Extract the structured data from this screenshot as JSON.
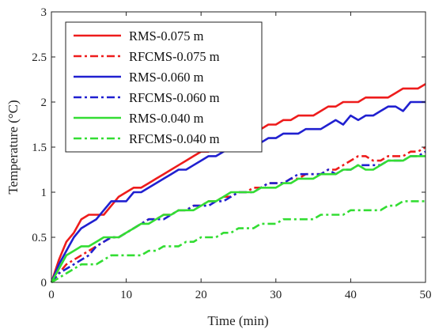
{
  "chart_data": {
    "type": "line",
    "xlabel": "Time (min)",
    "ylabel": "Temperature (°C)",
    "xlim": [
      0,
      50
    ],
    "ylim": [
      0,
      3
    ],
    "xticks": [
      0,
      10,
      20,
      30,
      40,
      50
    ],
    "xtick_labels": [
      "0",
      "10",
      "20",
      "30",
      "40",
      "50"
    ],
    "yticks": [
      0,
      0.5,
      1,
      1.5,
      2,
      2.5,
      3
    ],
    "ytick_labels": [
      "0",
      "0.5",
      "1",
      "1.5",
      "2",
      "2.5",
      "3"
    ],
    "grid": false,
    "legend_position": "top-left",
    "series": [
      {
        "name": "RMS-0.075 m",
        "color": "#ee1c1c",
        "dash": "solid",
        "x": [
          0,
          1,
          2,
          3,
          4,
          5,
          6,
          7,
          8,
          9,
          10,
          11,
          12,
          13,
          14,
          15,
          16,
          17,
          18,
          19,
          20,
          21,
          22,
          23,
          24,
          25,
          26,
          27,
          28,
          29,
          30,
          31,
          32,
          33,
          34,
          35,
          36,
          37,
          38,
          39,
          40,
          41,
          42,
          43,
          44,
          45,
          46,
          47,
          48,
          49,
          50
        ],
        "y": [
          0,
          0.25,
          0.45,
          0.55,
          0.7,
          0.75,
          0.75,
          0.75,
          0.85,
          0.95,
          1.0,
          1.05,
          1.05,
          1.1,
          1.15,
          1.2,
          1.25,
          1.3,
          1.35,
          1.4,
          1.45,
          1.45,
          1.5,
          1.5,
          1.55,
          1.55,
          1.6,
          1.65,
          1.7,
          1.75,
          1.75,
          1.8,
          1.8,
          1.85,
          1.85,
          1.85,
          1.9,
          1.95,
          1.95,
          2.0,
          2.0,
          2.0,
          2.05,
          2.05,
          2.05,
          2.05,
          2.1,
          2.15,
          2.15,
          2.15,
          2.2
        ]
      },
      {
        "name": "RFCMS-0.075 m",
        "color": "#ee1c1c",
        "dash": "dashdot",
        "x": [
          0,
          1,
          2,
          3,
          4,
          5,
          6,
          7,
          8,
          9,
          10,
          11,
          12,
          13,
          14,
          15,
          16,
          17,
          18,
          19,
          20,
          21,
          22,
          23,
          24,
          25,
          26,
          27,
          28,
          29,
          30,
          31,
          32,
          33,
          34,
          35,
          36,
          37,
          38,
          39,
          40,
          41,
          42,
          43,
          44,
          45,
          46,
          47,
          48,
          49,
          50
        ],
        "y": [
          0,
          0.1,
          0.2,
          0.25,
          0.3,
          0.35,
          0.4,
          0.45,
          0.5,
          0.5,
          0.55,
          0.6,
          0.65,
          0.7,
          0.7,
          0.75,
          0.75,
          0.8,
          0.8,
          0.85,
          0.85,
          0.9,
          0.9,
          0.95,
          0.95,
          1.0,
          1.0,
          1.05,
          1.05,
          1.1,
          1.1,
          1.1,
          1.15,
          1.15,
          1.2,
          1.2,
          1.2,
          1.25,
          1.25,
          1.3,
          1.35,
          1.4,
          1.4,
          1.35,
          1.35,
          1.4,
          1.4,
          1.4,
          1.45,
          1.45,
          1.5
        ]
      },
      {
        "name": "RMS-0.060 m",
        "color": "#2020d0",
        "dash": "solid",
        "x": [
          0,
          1,
          2,
          3,
          4,
          5,
          6,
          7,
          8,
          9,
          10,
          11,
          12,
          13,
          14,
          15,
          16,
          17,
          18,
          19,
          20,
          21,
          22,
          23,
          24,
          25,
          26,
          27,
          28,
          29,
          30,
          31,
          32,
          33,
          34,
          35,
          36,
          37,
          38,
          39,
          40,
          41,
          42,
          43,
          44,
          45,
          46,
          47,
          48,
          49,
          50
        ],
        "y": [
          0,
          0.2,
          0.35,
          0.5,
          0.6,
          0.65,
          0.7,
          0.8,
          0.9,
          0.9,
          0.9,
          1.0,
          1.0,
          1.05,
          1.1,
          1.15,
          1.2,
          1.25,
          1.25,
          1.3,
          1.35,
          1.4,
          1.4,
          1.45,
          1.5,
          1.5,
          1.5,
          1.55,
          1.55,
          1.6,
          1.6,
          1.65,
          1.65,
          1.65,
          1.7,
          1.7,
          1.7,
          1.75,
          1.8,
          1.75,
          1.85,
          1.8,
          1.85,
          1.85,
          1.9,
          1.95,
          1.95,
          1.9,
          2.0,
          2.0,
          2.0
        ]
      },
      {
        "name": "RFCMS-0.060 m",
        "color": "#2020d0",
        "dash": "dashdot",
        "x": [
          0,
          1,
          2,
          3,
          4,
          5,
          6,
          7,
          8,
          9,
          10,
          11,
          12,
          13,
          14,
          15,
          16,
          17,
          18,
          19,
          20,
          21,
          22,
          23,
          24,
          25,
          26,
          27,
          28,
          29,
          30,
          31,
          32,
          33,
          34,
          35,
          36,
          37,
          38,
          39,
          40,
          41,
          42,
          43,
          44,
          45,
          46,
          47,
          48,
          49,
          50
        ],
        "y": [
          0,
          0.1,
          0.15,
          0.2,
          0.25,
          0.3,
          0.4,
          0.45,
          0.5,
          0.5,
          0.55,
          0.6,
          0.65,
          0.7,
          0.7,
          0.7,
          0.75,
          0.8,
          0.8,
          0.85,
          0.85,
          0.85,
          0.9,
          0.9,
          0.95,
          1.0,
          1.0,
          1.0,
          1.05,
          1.1,
          1.1,
          1.1,
          1.15,
          1.2,
          1.2,
          1.2,
          1.2,
          1.25,
          1.2,
          1.25,
          1.25,
          1.3,
          1.3,
          1.3,
          1.3,
          1.35,
          1.35,
          1.35,
          1.4,
          1.4,
          1.45
        ]
      },
      {
        "name": "RMS-0.040 m",
        "color": "#33dd33",
        "dash": "solid",
        "x": [
          0,
          1,
          2,
          3,
          4,
          5,
          6,
          7,
          8,
          9,
          10,
          11,
          12,
          13,
          14,
          15,
          16,
          17,
          18,
          19,
          20,
          21,
          22,
          23,
          24,
          25,
          26,
          27,
          28,
          29,
          30,
          31,
          32,
          33,
          34,
          35,
          36,
          37,
          38,
          39,
          40,
          41,
          42,
          43,
          44,
          45,
          46,
          47,
          48,
          49,
          50
        ],
        "y": [
          0,
          0.15,
          0.3,
          0.35,
          0.4,
          0.4,
          0.45,
          0.5,
          0.5,
          0.5,
          0.55,
          0.6,
          0.65,
          0.65,
          0.7,
          0.75,
          0.75,
          0.8,
          0.8,
          0.8,
          0.85,
          0.9,
          0.9,
          0.95,
          1.0,
          1.0,
          1.0,
          1.0,
          1.05,
          1.05,
          1.05,
          1.1,
          1.1,
          1.15,
          1.15,
          1.15,
          1.2,
          1.2,
          1.2,
          1.25,
          1.25,
          1.3,
          1.25,
          1.25,
          1.3,
          1.35,
          1.35,
          1.35,
          1.4,
          1.4,
          1.4
        ]
      },
      {
        "name": "RFCMS-0.040 m",
        "color": "#33dd33",
        "dash": "dashdot",
        "x": [
          0,
          1,
          2,
          3,
          4,
          5,
          6,
          7,
          8,
          9,
          10,
          11,
          12,
          13,
          14,
          15,
          16,
          17,
          18,
          19,
          20,
          21,
          22,
          23,
          24,
          25,
          26,
          27,
          28,
          29,
          30,
          31,
          32,
          33,
          34,
          35,
          36,
          37,
          38,
          39,
          40,
          41,
          42,
          43,
          44,
          45,
          46,
          47,
          48,
          49,
          50
        ],
        "y": [
          0,
          0.05,
          0.1,
          0.15,
          0.2,
          0.2,
          0.2,
          0.25,
          0.3,
          0.3,
          0.3,
          0.3,
          0.3,
          0.35,
          0.35,
          0.4,
          0.4,
          0.4,
          0.45,
          0.45,
          0.5,
          0.5,
          0.5,
          0.55,
          0.55,
          0.6,
          0.6,
          0.6,
          0.65,
          0.65,
          0.65,
          0.7,
          0.7,
          0.7,
          0.7,
          0.7,
          0.75,
          0.75,
          0.75,
          0.75,
          0.8,
          0.8,
          0.8,
          0.8,
          0.8,
          0.85,
          0.85,
          0.9,
          0.9,
          0.9,
          0.9
        ]
      }
    ]
  }
}
